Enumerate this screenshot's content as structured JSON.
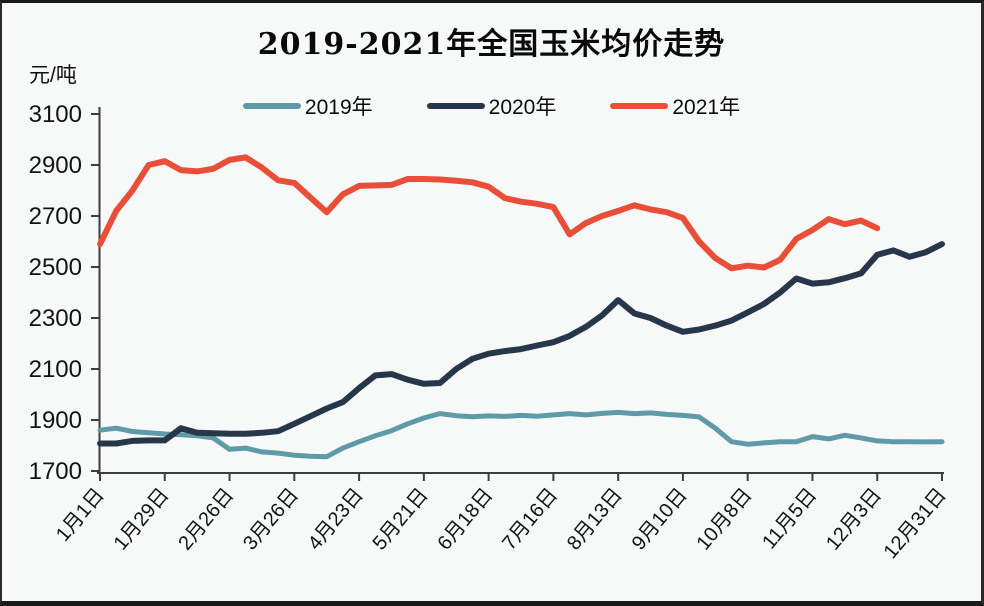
{
  "frame": {
    "background": "#f7f8f8",
    "border_color": "#1a1a1a",
    "axis_color": "#3d3d3d",
    "tick_text_color": "#131313"
  },
  "chart_data": {
    "type": "line",
    "title": "2019-2021年全国玉米均价走势",
    "ylabel": "元/吨",
    "xlabel": "",
    "ylim": [
      1700,
      3100
    ],
    "y_ticks": [
      1700,
      1900,
      2100,
      2300,
      2500,
      2700,
      2900,
      3100
    ],
    "x_tick_labels": [
      "1月1日",
      "1月29日",
      "2月26日",
      "3月26日",
      "4月23日",
      "5月21日",
      "6月18日",
      "7月16日",
      "8月13日",
      "9月10日",
      "10月8日",
      "11月5日",
      "12月3日",
      "12月31日"
    ],
    "x_points_per_tick": 4,
    "x_unit": "weekly",
    "grid": false,
    "legend_position": "top-center",
    "series": [
      {
        "name": "2019年",
        "color": "#5e9aa8",
        "line_width": 5,
        "values": [
          1860,
          1868,
          1855,
          1850,
          1845,
          1842,
          1838,
          1830,
          1785,
          1790,
          1775,
          1770,
          1762,
          1758,
          1756,
          1790,
          1815,
          1838,
          1858,
          1885,
          1908,
          1925,
          1917,
          1913,
          1916,
          1914,
          1918,
          1915,
          1920,
          1925,
          1920,
          1926,
          1930,
          1925,
          1928,
          1922,
          1918,
          1912,
          1868,
          1815,
          1805,
          1810,
          1815,
          1815,
          1835,
          1826,
          1840,
          1830,
          1818,
          1815,
          1815,
          1814,
          1815
        ]
      },
      {
        "name": "2020年",
        "color": "#26374a",
        "line_width": 6,
        "values": [
          1808,
          1808,
          1818,
          1820,
          1820,
          1868,
          1850,
          1848,
          1846,
          1846,
          1850,
          1856,
          1885,
          1915,
          1945,
          1970,
          2025,
          2075,
          2080,
          2058,
          2042,
          2045,
          2100,
          2140,
          2160,
          2170,
          2178,
          2192,
          2205,
          2230,
          2265,
          2310,
          2370,
          2318,
          2300,
          2270,
          2246,
          2255,
          2270,
          2290,
          2322,
          2355,
          2400,
          2455,
          2435,
          2440,
          2456,
          2475,
          2548,
          2565,
          2540,
          2558,
          2590
        ]
      },
      {
        "name": "2021年",
        "color": "#e94e38",
        "line_width": 6,
        "values": [
          2590,
          2720,
          2800,
          2900,
          2915,
          2880,
          2875,
          2885,
          2920,
          2930,
          2890,
          2840,
          2830,
          2772,
          2715,
          2785,
          2818,
          2820,
          2822,
          2845,
          2845,
          2843,
          2838,
          2832,
          2815,
          2770,
          2756,
          2748,
          2735,
          2628,
          2672,
          2700,
          2720,
          2742,
          2726,
          2715,
          2692,
          2600,
          2535,
          2495,
          2505,
          2498,
          2528,
          2610,
          2645,
          2688,
          2668,
          2682,
          2652
        ]
      }
    ]
  }
}
